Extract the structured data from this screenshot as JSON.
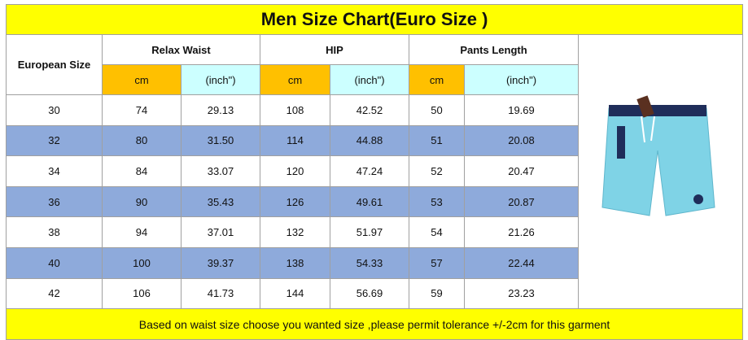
{
  "title": "Men Size Chart(Euro Size )",
  "header": {
    "size_label": "European Size",
    "groups": [
      "Relax Waist",
      "HIP",
      "Pants Length"
    ],
    "units": [
      "cm",
      "(inch\")",
      "cm",
      "(inch\")",
      "cm",
      "(inch\")"
    ]
  },
  "rows": [
    [
      "30",
      "74",
      "29.13",
      "108",
      "42.52",
      "50",
      "19.69"
    ],
    [
      "32",
      "80",
      "31.50",
      "114",
      "44.88",
      "51",
      "20.08"
    ],
    [
      "34",
      "84",
      "33.07",
      "120",
      "47.24",
      "52",
      "20.47"
    ],
    [
      "36",
      "90",
      "35.43",
      "126",
      "49.61",
      "53",
      "20.87"
    ],
    [
      "38",
      "94",
      "37.01",
      "132",
      "51.97",
      "54",
      "21.26"
    ],
    [
      "40",
      "100",
      "39.37",
      "138",
      "54.33",
      "57",
      "22.44"
    ],
    [
      "42",
      "106",
      "41.73",
      "144",
      "56.69",
      "59",
      "23.23"
    ]
  ],
  "footer": "Based on waist size choose you wanted size ,please permit tolerance +/-2cm for this garment"
}
